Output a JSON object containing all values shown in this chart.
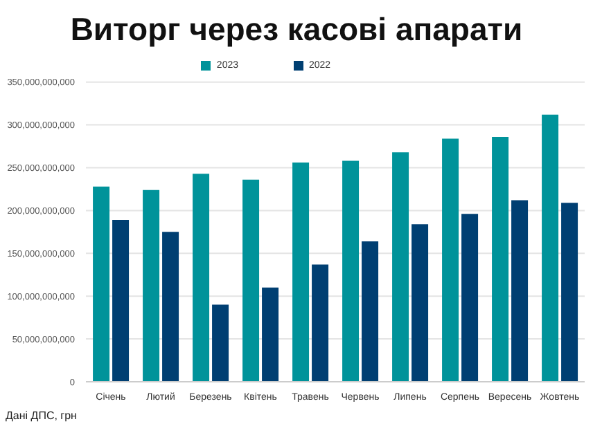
{
  "chart_data": {
    "type": "bar",
    "title": "Виторг через касові апарати",
    "categories": [
      "Січень",
      "Лютий",
      "Березень",
      "Квітень",
      "Травень",
      "Червень",
      "Липень",
      "Серпень",
      "Вересень",
      "Жовтень"
    ],
    "series": [
      {
        "name": "2023",
        "color": "#00939a",
        "values": [
          228000000000,
          224000000000,
          243000000000,
          236000000000,
          256000000000,
          258000000000,
          268000000000,
          284000000000,
          286000000000,
          312000000000
        ]
      },
      {
        "name": "2022",
        "color": "#003f72",
        "values": [
          189000000000,
          175000000000,
          90000000000,
          110000000000,
          137000000000,
          164000000000,
          184000000000,
          196000000000,
          212000000000,
          209000000000
        ]
      }
    ],
    "ylim": [
      0,
      350000000000
    ],
    "yticks": [
      {
        "value": 0,
        "label": "0"
      },
      {
        "value": 50000000000,
        "label": "50,000,000,000"
      },
      {
        "value": 100000000000,
        "label": "100,000,000,000"
      },
      {
        "value": 150000000000,
        "label": "150,000,000,000"
      },
      {
        "value": 200000000000,
        "label": "200,000,000,000"
      },
      {
        "value": 250000000000,
        "label": "250,000,000,000"
      },
      {
        "value": 300000000000,
        "label": "300,000,000,000"
      },
      {
        "value": 350000000000,
        "label": "350,000,000,000"
      }
    ],
    "grid": "y",
    "legend": "top",
    "annotations": [
      "Дані ДПС, грн"
    ]
  }
}
